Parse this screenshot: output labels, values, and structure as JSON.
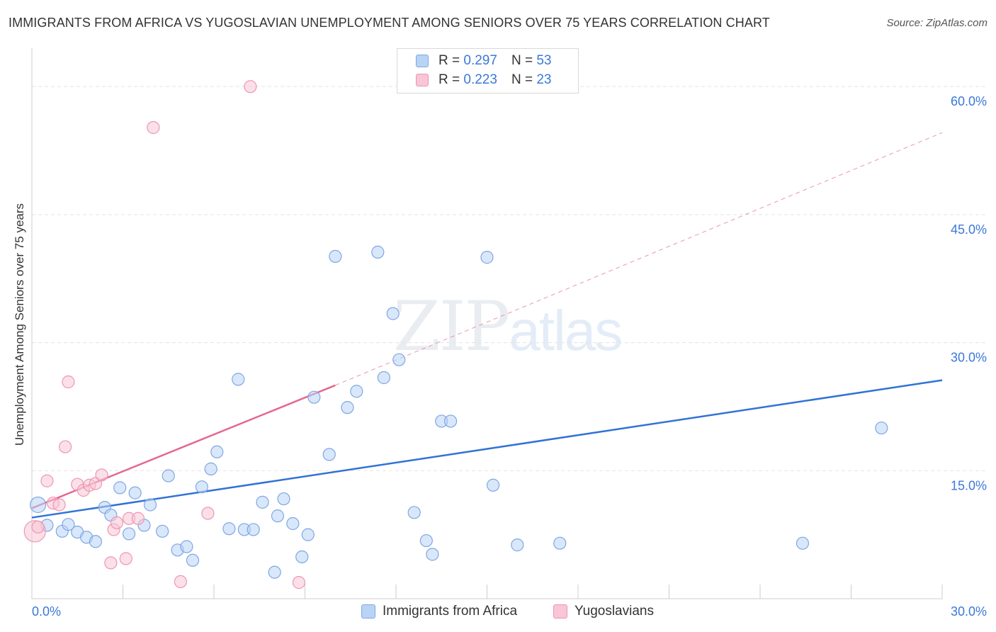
{
  "title": "IMMIGRANTS FROM AFRICA VS YUGOSLAVIAN UNEMPLOYMENT AMONG SENIORS OVER 75 YEARS CORRELATION CHART",
  "source": "Source: ZipAtlas.com",
  "watermark": {
    "zip": "ZIP",
    "atlas": "atlas"
  },
  "legend": {
    "r_label": "R =",
    "n_label": "N =",
    "rows": [
      {
        "r": "0.297",
        "n": "53"
      },
      {
        "r": "0.223",
        "n": "23"
      }
    ]
  },
  "colors": {
    "africa_fill": "#b9d3f5",
    "africa_stroke": "#7ea7e3",
    "africa_line": "#3172d6",
    "yugo_fill": "#f8c6d6",
    "yugo_stroke": "#ee95b3",
    "yugo_line": "#e46890",
    "axis_label": "#3b78d8",
    "grid": "#e3e3e3"
  },
  "chart_data": {
    "type": "scatter",
    "title": "IMMIGRANTS FROM AFRICA VS YUGOSLAVIAN UNEMPLOYMENT AMONG SENIORS OVER 75 YEARS CORRELATION CHART",
    "xlabel": "",
    "ylabel": "Unemployment Among Seniors over 75 years",
    "xlim": [
      0,
      30
    ],
    "ylim": [
      0,
      60
    ],
    "x_tick_labels": [
      "0.0%",
      "30.0%"
    ],
    "y_ticks": [
      15,
      30,
      45,
      60
    ],
    "y_tick_labels": [
      "15.0%",
      "30.0%",
      "45.0%",
      "60.0%"
    ],
    "grid": true,
    "legend_position": "top-center",
    "series": [
      {
        "name": "Immigrants from Africa",
        "points": [
          [
            0.2,
            11.0
          ],
          [
            0.5,
            8.6
          ],
          [
            1.0,
            7.9
          ],
          [
            1.2,
            8.7
          ],
          [
            1.5,
            7.8
          ],
          [
            1.8,
            7.2
          ],
          [
            2.1,
            6.7
          ],
          [
            2.4,
            10.7
          ],
          [
            2.6,
            9.8
          ],
          [
            2.9,
            13.0
          ],
          [
            3.2,
            7.6
          ],
          [
            3.4,
            12.4
          ],
          [
            3.7,
            8.6
          ],
          [
            3.9,
            11.0
          ],
          [
            4.3,
            7.9
          ],
          [
            4.5,
            14.4
          ],
          [
            4.8,
            5.7
          ],
          [
            5.1,
            6.1
          ],
          [
            5.3,
            4.5
          ],
          [
            5.6,
            13.1
          ],
          [
            5.9,
            15.2
          ],
          [
            6.1,
            17.2
          ],
          [
            6.5,
            8.2
          ],
          [
            6.8,
            25.7
          ],
          [
            7.0,
            8.1
          ],
          [
            7.3,
            8.1
          ],
          [
            7.6,
            11.3
          ],
          [
            8.0,
            3.1
          ],
          [
            8.1,
            9.7
          ],
          [
            8.3,
            11.7
          ],
          [
            8.6,
            8.8
          ],
          [
            8.9,
            4.9
          ],
          [
            9.1,
            7.5
          ],
          [
            9.3,
            23.6
          ],
          [
            9.8,
            16.9
          ],
          [
            10.0,
            40.1
          ],
          [
            10.4,
            22.4
          ],
          [
            10.7,
            24.3
          ],
          [
            11.4,
            40.6
          ],
          [
            11.6,
            25.9
          ],
          [
            11.9,
            33.4
          ],
          [
            12.1,
            28.0
          ],
          [
            12.6,
            10.1
          ],
          [
            13.0,
            6.8
          ],
          [
            13.2,
            5.2
          ],
          [
            13.5,
            20.8
          ],
          [
            13.8,
            20.8
          ],
          [
            15.0,
            40.0
          ],
          [
            15.2,
            13.3
          ],
          [
            16.0,
            6.3
          ],
          [
            17.4,
            6.5
          ],
          [
            25.4,
            6.5
          ],
          [
            28.0,
            20.0
          ]
        ]
      },
      {
        "name": "Yugoslavians",
        "points": [
          [
            0.1,
            7.9
          ],
          [
            0.2,
            8.4
          ],
          [
            0.5,
            13.8
          ],
          [
            0.7,
            11.2
          ],
          [
            0.9,
            11.0
          ],
          [
            1.1,
            17.8
          ],
          [
            1.2,
            25.4
          ],
          [
            1.5,
            13.4
          ],
          [
            1.7,
            12.7
          ],
          [
            1.9,
            13.3
          ],
          [
            2.1,
            13.5
          ],
          [
            2.3,
            14.5
          ],
          [
            2.6,
            4.2
          ],
          [
            2.7,
            8.1
          ],
          [
            2.8,
            8.9
          ],
          [
            3.1,
            4.7
          ],
          [
            3.2,
            9.4
          ],
          [
            3.5,
            9.4
          ],
          [
            4.0,
            55.2
          ],
          [
            4.9,
            2.0
          ],
          [
            5.8,
            10.0
          ],
          [
            7.2,
            60.0
          ],
          [
            8.8,
            1.9
          ]
        ]
      }
    ],
    "trend_lines": [
      {
        "series": "Immigrants from Africa",
        "from": [
          0,
          9.5
        ],
        "to": [
          30,
          25.6
        ]
      },
      {
        "series": "Yugoslavians",
        "from": [
          0,
          10.6
        ],
        "to": [
          10,
          25.0
        ],
        "dashed_extension_to": [
          30,
          54.6
        ]
      }
    ]
  },
  "bottom_legend": [
    "Immigrants from Africa",
    "Yugoslavians"
  ]
}
